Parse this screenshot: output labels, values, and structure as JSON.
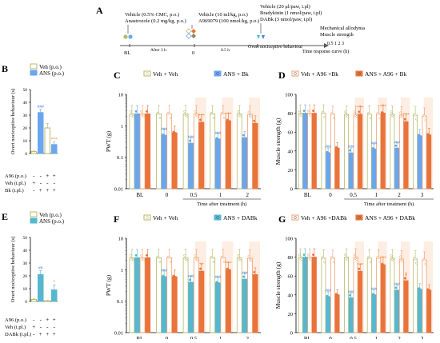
{
  "panel_a": {
    "letter": "A",
    "vehicle_ans": "Vehicle (0.5% CMC, p.o.)",
    "anastrozole": "Anastrozole (0.2 mg/kg, p.o.)",
    "vehicle_a96": "Vehicle (10 ml/kg, p.o.)",
    "a969079": "A969079 (100 nmol/kg, p.o.)",
    "vehicle_bk": "Vehicle (20 μl/paw, i.pl)",
    "bradykinin": "Bradykinin (1 nmol/paw, i.pl)",
    "dabk": "DABk (3 nmol/paw, i.pl)",
    "bl": "BL",
    "after3h": "After 3 h",
    "zero": "0",
    "half_h": "0.5 h",
    "overt": "Overt nociceptive behaviour",
    "mech": "Mechanical allodynia",
    "muscle": "Muscle strength",
    "ticks": "0.5  1  2  3",
    "trc": "Time response curve (h)"
  },
  "colors": {
    "veh": "#b8b86a",
    "ans": "#6aa6ee",
    "a96": "#f0a070",
    "bk": "#e8743c",
    "dabk_ans": "#56b7cf",
    "sig_blue": "#3f7fe0",
    "sig_orange": "#ff6a00",
    "shade": "#fde5d6"
  },
  "chart_data": [
    {
      "panel": "B",
      "type": "bar",
      "legend": [
        "Veh (p.o.)",
        "ANS (p.o.)"
      ],
      "ylabel": "Overt nociceptive behaviour (s)",
      "ylim": [
        0,
        50
      ],
      "yticks": [
        0,
        10,
        20,
        30,
        40,
        50
      ],
      "rows": [
        {
          "label": "A96 (p.o.)",
          "signs": [
            "-",
            "-",
            "+",
            "+"
          ]
        },
        {
          "label": "Veh (i.pl.)",
          "signs": [
            "+",
            "-",
            "-",
            "-"
          ]
        },
        {
          "label": "Bk (i.pl.)",
          "signs": [
            "-",
            "+",
            "+",
            "+"
          ]
        }
      ],
      "values": [
        1.5,
        32,
        20,
        7
      ],
      "errors": [
        0.5,
        2.5,
        3.5,
        2
      ],
      "bar_style": [
        "veh",
        "ans",
        "veh_outline",
        "ans"
      ],
      "sig": [
        "",
        "###",
        "",
        "***"
      ]
    },
    {
      "panel": "E",
      "type": "bar",
      "legend": [
        "Veh (p.o.)",
        "ANS (p.o.)"
      ],
      "ylabel": "Overt nociceptive behaviour (s)",
      "ylim": [
        0,
        50
      ],
      "yticks": [
        0,
        10,
        20,
        30,
        40,
        50
      ],
      "rows": [
        {
          "label": "A96 (p.o.)",
          "signs": [
            "-",
            "-",
            "+",
            "+"
          ]
        },
        {
          "label": "Veh (i.pl.)",
          "signs": [
            "+",
            "-",
            "-",
            "-"
          ]
        },
        {
          "label": "DABk (i.pl.)",
          "signs": [
            "-",
            "+",
            "+",
            "+"
          ]
        }
      ],
      "values": [
        1.5,
        21,
        0.5,
        9
      ],
      "errors": [
        0.5,
        3,
        0.3,
        4
      ],
      "bar_style": [
        "veh",
        "dabk_ans",
        "veh_outline",
        "dabk_ans"
      ],
      "sig": [
        "",
        "##",
        "",
        "*"
      ]
    },
    {
      "panel": "C",
      "type": "bar",
      "scale": "log",
      "ylabel": "PWT (g)",
      "ylim": [
        0.01,
        10
      ],
      "yticks": [
        "0.01",
        "0.1",
        "1",
        "10"
      ],
      "xlabel": "Time after treatment (h)",
      "categories": [
        "BL",
        "0",
        "0.5",
        "1",
        "2"
      ],
      "legend": [
        "Veh + Veh",
        "ANS + Bk",
        "Veh + A96 +Bk",
        "ANS + A96 + Bk"
      ],
      "series": [
        {
          "name": "Veh + Veh",
          "values": [
            2.4,
            2.4,
            2.4,
            2.4,
            2.4
          ]
        },
        {
          "name": "ANS + Bk",
          "values": [
            2.4,
            0.5,
            0.28,
            0.38,
            0.42
          ]
        },
        {
          "name": "Veh + A96 +Bk",
          "values": [
            2.4,
            2.4,
            2.4,
            2.4,
            2.3
          ]
        },
        {
          "name": "ANS + A96 + Bk",
          "values": [
            2.4,
            0.6,
            1.3,
            1.45,
            1.2
          ]
        }
      ],
      "sig_blue": [
        "",
        "###",
        "###",
        "###",
        ""
      ],
      "sig_orange": [
        "",
        "",
        "***",
        "***",
        ""
      ]
    },
    {
      "panel": "D",
      "type": "bar",
      "ylabel": "Muscle strength (g)",
      "ylim": [
        0,
        100
      ],
      "yticks": [
        0,
        20,
        40,
        60,
        80,
        100
      ],
      "xlabel": "Time after treatment (h)",
      "categories": [
        "BL",
        "0",
        "0.5",
        "1",
        "2",
        "3"
      ],
      "series": [
        {
          "name": "Veh + Veh",
          "values": [
            80,
            80,
            79,
            79,
            79,
            78
          ]
        },
        {
          "name": "ANS + Bk",
          "values": [
            80,
            38,
            38,
            42,
            43,
            56
          ]
        },
        {
          "name": "Veh + A96 +Bk",
          "values": [
            80,
            79,
            79,
            79,
            78,
            77
          ]
        },
        {
          "name": "ANS + A96 + Bk",
          "values": [
            80,
            43,
            79,
            80,
            71,
            57
          ]
        }
      ],
      "sig_blue": [
        "",
        "###",
        "###",
        "###",
        "###",
        ""
      ],
      "sig_orange": [
        "",
        "",
        "***",
        "***",
        "***",
        ""
      ]
    },
    {
      "panel": "F",
      "type": "bar",
      "scale": "log",
      "ylabel": "PWT (g)",
      "ylim": [
        0.01,
        10
      ],
      "yticks": [
        "0.01",
        "0.1",
        "1",
        "10"
      ],
      "xlabel": "Time after treatment (h)",
      "categories": [
        "BL",
        "0",
        "0.5",
        "1",
        "2"
      ],
      "legend": [
        "Veh + Veh",
        "ANS + DABk",
        "Veh + A96 +DABk",
        "ANS + A96 + DABk"
      ],
      "series": [
        {
          "name": "Veh + Veh",
          "values": [
            2.4,
            2.4,
            2.4,
            2.4,
            2.4
          ]
        },
        {
          "name": "ANS + DABk",
          "values": [
            2.4,
            0.6,
            0.4,
            0.38,
            0.5
          ]
        },
        {
          "name": "Veh + A96 +DABk",
          "values": [
            2.4,
            2.4,
            2.4,
            2.4,
            2.3
          ]
        },
        {
          "name": "ANS + A96 + DABk",
          "values": [
            2.4,
            0.6,
            0.9,
            1.0,
            0.7
          ]
        }
      ],
      "sig_blue": [
        "",
        "###",
        "###",
        "###",
        "###"
      ],
      "sig_orange": [
        "",
        "",
        "**",
        "***",
        ""
      ]
    },
    {
      "panel": "G",
      "type": "bar",
      "ylabel": "Muscle strength (g)",
      "ylim": [
        0,
        100
      ],
      "yticks": [
        0,
        20,
        40,
        60,
        80,
        100
      ],
      "xlabel": "Time after treatment (h)",
      "categories": [
        "BL",
        "0",
        "0.5",
        "1",
        "2",
        "3"
      ],
      "series": [
        {
          "name": "Veh + Veh",
          "values": [
            80,
            79,
            80,
            79,
            79,
            78
          ]
        },
        {
          "name": "ANS + DABk",
          "values": [
            80,
            38,
            37,
            40,
            45,
            46
          ]
        },
        {
          "name": "Veh + A96 +DABk",
          "values": [
            80,
            79,
            80,
            79,
            78,
            77
          ]
        },
        {
          "name": "ANS + A96 + DABk",
          "values": [
            80,
            40,
            65,
            72,
            55,
            45
          ]
        }
      ],
      "sig_blue": [
        "",
        "###",
        "###",
        "###",
        "###",
        ""
      ],
      "sig_orange": [
        "",
        "",
        "***",
        "***",
        "*",
        ""
      ]
    }
  ]
}
